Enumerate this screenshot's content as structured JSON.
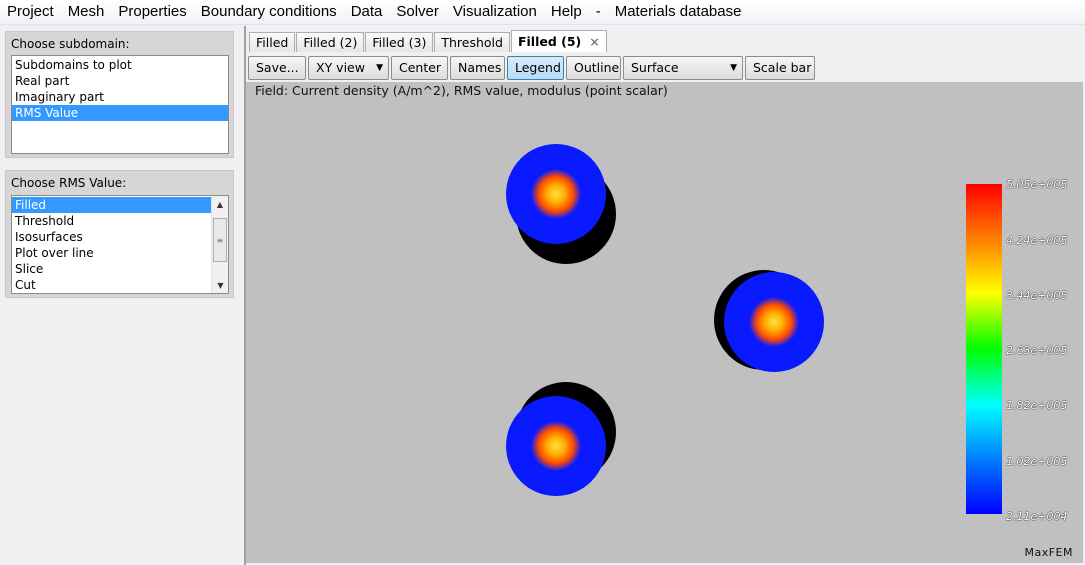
{
  "menu": [
    "Project",
    "Mesh",
    "Properties",
    "Boundary conditions",
    "Data",
    "Solver",
    "Visualization",
    "Help",
    "-",
    "Materials database"
  ],
  "subdomain_panel": {
    "title": "Choose subdomain:",
    "items": [
      "Subdomains to plot",
      "Real part",
      "Imaginary part",
      "RMS Value"
    ],
    "selected_index": 3
  },
  "rms_panel": {
    "title": "Choose RMS Value:",
    "items": [
      "Filled",
      "Threshold",
      "Isosurfaces",
      "Plot over line",
      "Slice",
      "Cut"
    ],
    "selected_index": 0
  },
  "tabs": [
    {
      "label": "Filled",
      "active": false
    },
    {
      "label": "Filled (2)",
      "active": false
    },
    {
      "label": "Filled (3)",
      "active": false
    },
    {
      "label": "Threshold",
      "active": false
    },
    {
      "label": "Filled (5)",
      "active": true,
      "close": "×"
    }
  ],
  "toolbar": {
    "save": "Save...",
    "view": "XY view",
    "center": "Center",
    "names": "Names",
    "legend": "Legend",
    "outline": "Outline",
    "representation": "Surface",
    "scale_bar": "Scale bar"
  },
  "field_label": "Field: Current density (A/m^2), RMS value, modulus (point scalar)",
  "legend": {
    "labels": [
      "5.05e+005",
      "4.24e+005",
      "3.44e+005",
      "2.63e+005",
      "1.82e+005",
      "1.02e+005",
      "2.11e+004"
    ]
  },
  "brand": "MaxFEM",
  "colors": {
    "selection": "#3399ff",
    "viewport_bg": "#c0c0c0",
    "conductor_outer": "#0a1aff",
    "conductor_core": "#ff4a00",
    "shadow": "#000000"
  }
}
